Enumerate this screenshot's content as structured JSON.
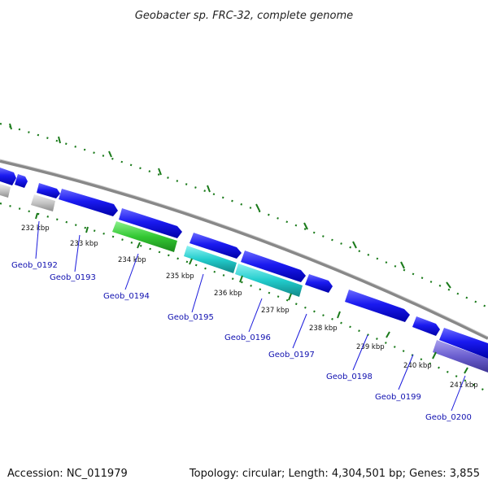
{
  "title": "Geobacter sp. FRC-32, complete genome",
  "footer": {
    "accession": "Accession: NC_011979",
    "summary": "Topology: circular; Length: 4,304,501 bp; Genes: 3,855"
  },
  "ticks": [
    "232 kbp",
    "233 kbp",
    "234 kbp",
    "235 kbp",
    "236 kbp",
    "237 kbp",
    "238 kbp",
    "239 kbp",
    "240 kbp",
    "241 kbp"
  ],
  "genes": [
    "Geob_0192",
    "Geob_0193",
    "Geob_0194",
    "Geob_0195",
    "Geob_0196",
    "Geob_0197",
    "Geob_0198",
    "Geob_0199",
    "Geob_0200"
  ],
  "colors": {
    "backbone": "#8a8a8a",
    "cds_forward": "#1414e6",
    "cds_highlight_green": "#33cc33",
    "cds_highlight_cyan": "#22cccc",
    "cds_purple": "#6b5fd0",
    "cds_grey": "#c8c8c8",
    "scale_dots": "#1a7a1a",
    "label_text": "#1010b0"
  }
}
